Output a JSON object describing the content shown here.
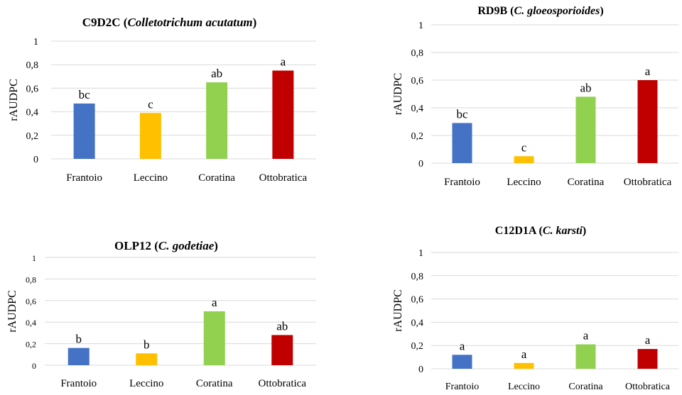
{
  "colors": {
    "Frantoio": "#4472C4",
    "Leccino": "#FFC000",
    "Coratina": "#92D050",
    "Ottobratica": "#C00000",
    "grid": "#D9D9D9"
  },
  "chart_data": [
    {
      "type": "bar",
      "title": "C9D2C",
      "title_species": "Colletotrichum  acutatum",
      "title_species_prefix": "",
      "ylabel": "rAUDPC",
      "ylim": [
        0,
        1
      ],
      "yticks": [
        "0",
        "0,2",
        "0,4",
        "0,6",
        "0,8",
        "1"
      ],
      "categories": [
        "Frantoio",
        "Leccino",
        "Coratina",
        "Ottobratica"
      ],
      "values": [
        0.47,
        0.39,
        0.65,
        0.75
      ],
      "letters": [
        "bc",
        "c",
        "ab",
        "a"
      ]
    },
    {
      "type": "bar",
      "title": "RD9B",
      "title_species": "gloeosporioides",
      "title_species_prefix": "C. ",
      "ylabel": "rAUDPC",
      "ylim": [
        0,
        1
      ],
      "yticks": [
        "0",
        "0,2",
        "0,4",
        "0,6",
        "0,8",
        "1"
      ],
      "categories": [
        "Frantoio",
        "Leccino",
        "Coratina",
        "Ottobratica"
      ],
      "values": [
        0.29,
        0.05,
        0.48,
        0.6
      ],
      "letters": [
        "bc",
        "c",
        "ab",
        "a"
      ]
    },
    {
      "type": "bar",
      "title": "OLP12",
      "title_species": "godetiae",
      "title_species_prefix": "C. ",
      "ylabel": "rAUDPC",
      "ylim": [
        0,
        1
      ],
      "yticks": [
        "0",
        "0,2",
        "0,4",
        "0,6",
        "0,8",
        "1"
      ],
      "categories": [
        "Frantoio",
        "Leccino",
        "Coratina",
        "Ottobratica"
      ],
      "values": [
        0.16,
        0.11,
        0.5,
        0.28
      ],
      "letters": [
        "b",
        "b",
        "a",
        "ab"
      ]
    },
    {
      "type": "bar",
      "title": "C12D1A",
      "title_species": "karsti",
      "title_species_prefix": "C. ",
      "ylabel": "rAUDPC",
      "ylim": [
        0,
        1
      ],
      "yticks": [
        "0",
        "0,2",
        "0,4",
        "0,6",
        "0,8",
        "1"
      ],
      "categories": [
        "Frantoio",
        "Leccino",
        "Coratina",
        "Ottobratica"
      ],
      "values": [
        0.12,
        0.05,
        0.21,
        0.17
      ],
      "letters": [
        "a",
        "a",
        "a",
        "a"
      ]
    }
  ]
}
